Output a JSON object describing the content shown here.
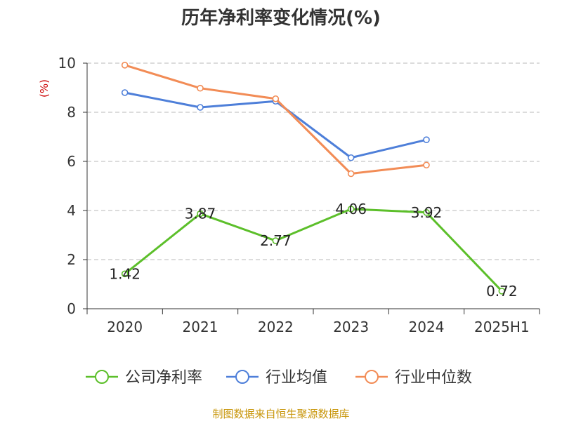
{
  "chart_data": {
    "type": "line",
    "title": "历年净利率变化情况(%)",
    "ylabel": "(%)",
    "xlabel": "",
    "categories": [
      "2020",
      "2021",
      "2022",
      "2023",
      "2024",
      "2025H1"
    ],
    "ylim": [
      0,
      10
    ],
    "yticks": [
      0,
      2,
      4,
      6,
      8,
      10
    ],
    "ytick_labels": [
      "0",
      "2",
      "4",
      "6",
      "8",
      "10"
    ],
    "grid": true,
    "legend_position": "bottom",
    "series": [
      {
        "name": "公司净利率",
        "color": "#5cbf2a",
        "values": [
          1.42,
          3.87,
          2.77,
          4.06,
          3.92,
          0.72
        ],
        "labels": [
          "1.42",
          "3.87",
          "2.77",
          "4.06",
          "3.92",
          "0.72"
        ]
      },
      {
        "name": "行业均值",
        "color": "#4e7fd9",
        "values": [
          8.8,
          8.2,
          8.45,
          6.15,
          6.88,
          null
        ]
      },
      {
        "name": "行业中位数",
        "color": "#f28c56",
        "values": [
          9.92,
          8.98,
          8.55,
          5.5,
          5.85,
          null
        ]
      }
    ]
  },
  "source": "制图数据来自恒生聚源数据库"
}
